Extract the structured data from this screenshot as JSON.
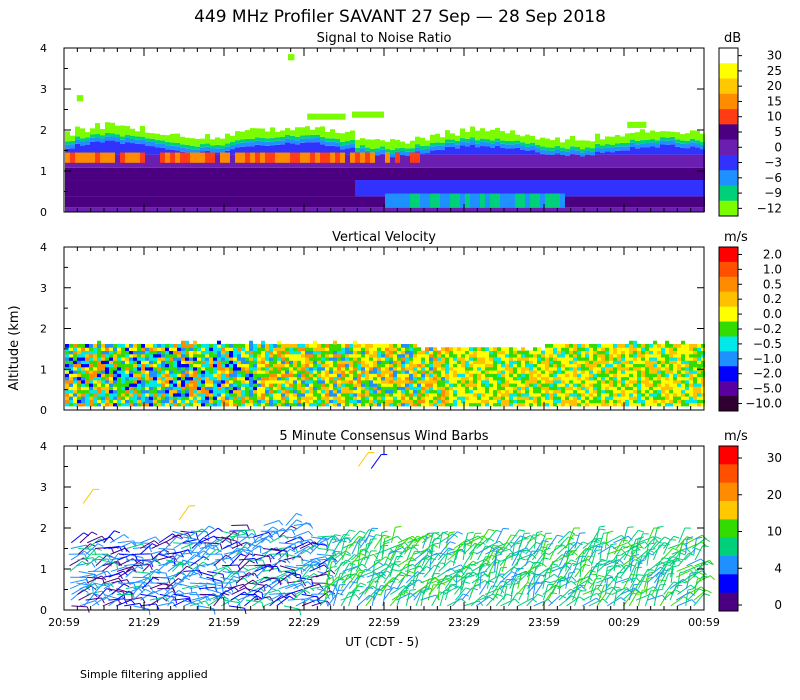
{
  "title": "449 MHz Profiler SAVANT 27 Sep — 28 Sep 2018",
  "ylabel": "Altitude (km)",
  "xlabel": "UT  (CDT - 5)",
  "footnote": "Simple filtering applied",
  "chart_data": [
    {
      "type": "heatmap",
      "title": "Signal to Noise Ratio",
      "unit": "dB",
      "y_ticks": [
        "0",
        "1",
        "2",
        "3",
        "4"
      ],
      "ylim": [
        0,
        4
      ],
      "colorbar": {
        "labels": [
          "30",
          "25",
          "20",
          "15",
          "10",
          "5",
          "0",
          "−3",
          "−6",
          "−9",
          "−12"
        ],
        "colors": [
          "#ffffff",
          "#ffff00",
          "#ffc800",
          "#ff8c00",
          "#ff3c14",
          "#4b0082",
          "#6a1fb0",
          "#3232ff",
          "#1e90ff",
          "#00d07a",
          "#7cfc00"
        ]
      }
    },
    {
      "type": "heatmap",
      "title": "Vertical Velocity",
      "unit": "m/s",
      "y_ticks": [
        "0",
        "1",
        "2",
        "3",
        "4"
      ],
      "ylim": [
        0,
        4
      ],
      "colorbar": {
        "labels": [
          "2.0",
          "1.0",
          "0.5",
          "0.2",
          "0.0",
          "−0.2",
          "−0.5",
          "−1.0",
          "−2.0",
          "−5.0",
          "−10.0"
        ],
        "colors": [
          "#ff0000",
          "#ff5000",
          "#ff8c00",
          "#ffc000",
          "#ffff00",
          "#32dc00",
          "#00e8e8",
          "#1e90ff",
          "#0000ff",
          "#5a00a0",
          "#300030"
        ]
      }
    },
    {
      "type": "wind-barbs",
      "title": "5 Minute Consensus Wind Barbs",
      "unit": "m/s",
      "y_ticks": [
        "0",
        "1",
        "2",
        "3",
        "4"
      ],
      "ylim": [
        0,
        4
      ],
      "colorbar": {
        "labels": [
          "30",
          "20",
          "10",
          "4",
          "0"
        ],
        "colors": [
          "#ff0000",
          "#ff5000",
          "#ff8c00",
          "#ffc800",
          "#32dc00",
          "#00d07a",
          "#1e90ff",
          "#0000ff",
          "#4b0082"
        ]
      }
    }
  ],
  "x_ticks": [
    "20:59",
    "21:29",
    "21:59",
    "22:29",
    "22:59",
    "23:29",
    "23:59",
    "00:29",
    "00:59"
  ]
}
